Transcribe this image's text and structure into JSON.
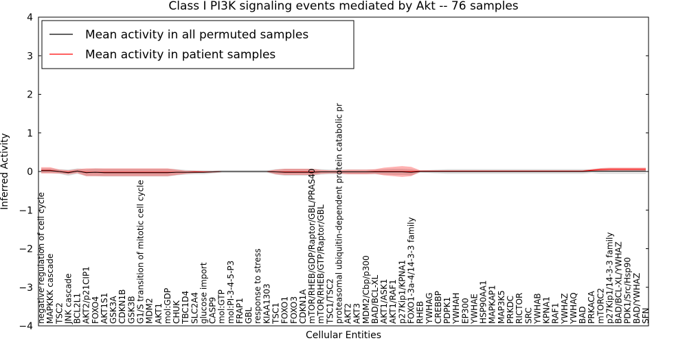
{
  "chart_data": {
    "type": "line",
    "title": "Class I PI3K signaling events mediated by Akt -- 76 samples",
    "xlabel": "Cellular Entities",
    "ylabel": "Inferred Activity",
    "ylim": [
      -4,
      4
    ],
    "yticks": [
      4,
      3,
      2,
      1,
      0,
      -1,
      -2,
      -3,
      -4
    ],
    "ytick_labels": [
      "4",
      "3",
      "2",
      "1",
      "0",
      "−1",
      "−2",
      "−3",
      "−4"
    ],
    "legend": {
      "position": "top-left",
      "entries": [
        {
          "label": "Mean activity in all permuted samples",
          "color": "#000000"
        },
        {
          "label": "Mean activity in patient samples",
          "color": "#ff0000"
        }
      ]
    },
    "categories": [
      "negative regulation of cell cycle",
      "MAPKKK cascade",
      "TSC2",
      "JNK cascade",
      "BCL2L1",
      "AKT2/p21CIP1",
      "FOXO4",
      "AKT1S1",
      "GSK3A",
      "CDKN1B",
      "GSK3B",
      "G1/S transition of mitotic cell cycle",
      "MDM2",
      "AKT1",
      "mol:GDP",
      "CHUK",
      "TBC1D4",
      "SLC2A4",
      "glucose import",
      "CASP9",
      "mol:GTP",
      "mol:PI-3-4-5-P3",
      "FRAP1",
      "GBL",
      "response to stress",
      "KIAA1303",
      "TSC1",
      "FOXO1",
      "FOXO3",
      "CDKN1A",
      "mTOR/RHEB/GDP/Raptor/GBL/PRAS40",
      "mTOR/RHEB/GTP/Raptor/GBL",
      "TSC1/TSC2",
      "proteasomal ubiquitin-dependent protein catabolic pr",
      "AKT2",
      "AKT3",
      "MDM2/Cbp/p300",
      "BAD/BCL-XL",
      "AKT1/ASK1",
      "AKT1/RAF1",
      "p27Kip1/KPNA1",
      "FOXO1-3a-4/14-3-3 family",
      "RHEB",
      "YWHAG",
      "CREBBP",
      "PDPK1",
      "YWHAH",
      "EP300",
      "YWHAE",
      "HSP90AA1",
      "MAPKAP1",
      "MAP3K5",
      "PRKDC",
      "RICTOR",
      "SRC",
      "YWHAB",
      "KPNA1",
      "RAF1",
      "YWHAZ",
      "YWHAQ",
      "BAD",
      "PRKACA",
      "mTORC2",
      "p27Kip1/14-3-3 family",
      "BAD/BCL-XL/YWHAZ",
      "PDK1/Src/Hsp90",
      "BAD/YWHAZ",
      "SFN"
    ],
    "series": [
      {
        "name": "Mean activity in all permuted samples",
        "color": "#000000",
        "values": [
          0.02,
          0.02,
          0.0,
          -0.03,
          0.01,
          -0.03,
          -0.02,
          -0.03,
          -0.03,
          -0.03,
          -0.03,
          -0.03,
          -0.03,
          -0.03,
          -0.03,
          -0.02,
          -0.02,
          -0.02,
          -0.02,
          -0.01,
          0.0,
          0.0,
          0.0,
          0.0,
          0.0,
          0.0,
          -0.01,
          -0.02,
          -0.02,
          -0.02,
          -0.02,
          -0.01,
          -0.01,
          -0.01,
          -0.01,
          -0.01,
          -0.01,
          -0.01,
          -0.01,
          -0.01,
          -0.01,
          -0.02,
          0.0,
          0.0,
          0.0,
          0.0,
          0.0,
          0.0,
          0.0,
          0.0,
          0.0,
          0.0,
          0.0,
          0.0,
          0.0,
          0.0,
          0.0,
          0.0,
          0.0,
          0.0,
          0.0,
          0.01,
          0.01,
          0.01,
          0.01,
          0.01,
          0.01,
          0.01
        ],
        "band": [
          0.06,
          0.06,
          0.06,
          0.08,
          0.07,
          0.09,
          0.1,
          0.1,
          0.1,
          0.1,
          0.1,
          0.1,
          0.1,
          0.1,
          0.1,
          0.08,
          0.06,
          0.05,
          0.05,
          0.04,
          0.03,
          0.03,
          0.03,
          0.03,
          0.03,
          0.03,
          0.07,
          0.09,
          0.09,
          0.09,
          0.09,
          0.07,
          0.06,
          0.06,
          0.06,
          0.06,
          0.06,
          0.06,
          0.07,
          0.08,
          0.08,
          0.08,
          0.03,
          0.04,
          0.05,
          0.06,
          0.06,
          0.06,
          0.06,
          0.06,
          0.06,
          0.06,
          0.06,
          0.06,
          0.06,
          0.06,
          0.06,
          0.06,
          0.06,
          0.06,
          0.06,
          0.05,
          0.07,
          0.07,
          0.07,
          0.07,
          0.07,
          0.07
        ]
      },
      {
        "name": "Mean activity in patient samples",
        "color": "#ff0000",
        "values": [
          0.03,
          0.03,
          0.0,
          -0.02,
          0.01,
          -0.02,
          -0.02,
          -0.02,
          -0.02,
          -0.02,
          -0.02,
          -0.02,
          -0.02,
          -0.02,
          -0.02,
          -0.02,
          -0.02,
          -0.01,
          -0.01,
          -0.01,
          0.0,
          0.0,
          0.0,
          0.0,
          0.0,
          0.0,
          -0.01,
          -0.01,
          -0.01,
          -0.01,
          -0.01,
          -0.01,
          -0.01,
          -0.01,
          -0.01,
          -0.01,
          -0.01,
          0.0,
          0.0,
          0.0,
          0.0,
          0.0,
          0.01,
          0.01,
          0.01,
          0.01,
          0.01,
          0.01,
          0.01,
          0.01,
          0.01,
          0.01,
          0.01,
          0.01,
          0.01,
          0.01,
          0.01,
          0.01,
          0.01,
          0.01,
          0.01,
          0.03,
          0.05,
          0.06,
          0.06,
          0.06,
          0.06,
          0.06
        ],
        "band": [
          0.08,
          0.08,
          0.05,
          0.05,
          0.05,
          0.1,
          0.1,
          0.1,
          0.1,
          0.1,
          0.1,
          0.1,
          0.1,
          0.1,
          0.1,
          0.07,
          0.04,
          0.03,
          0.02,
          0.02,
          0.01,
          0.01,
          0.01,
          0.01,
          0.01,
          0.01,
          0.06,
          0.08,
          0.08,
          0.08,
          0.08,
          0.05,
          0.04,
          0.04,
          0.06,
          0.06,
          0.06,
          0.06,
          0.1,
          0.12,
          0.14,
          0.12,
          0.02,
          0.02,
          0.02,
          0.02,
          0.02,
          0.02,
          0.02,
          0.02,
          0.02,
          0.02,
          0.02,
          0.02,
          0.02,
          0.02,
          0.02,
          0.02,
          0.02,
          0.02,
          0.02,
          0.03,
          0.04,
          0.04,
          0.04,
          0.04,
          0.04,
          0.04
        ]
      }
    ]
  }
}
